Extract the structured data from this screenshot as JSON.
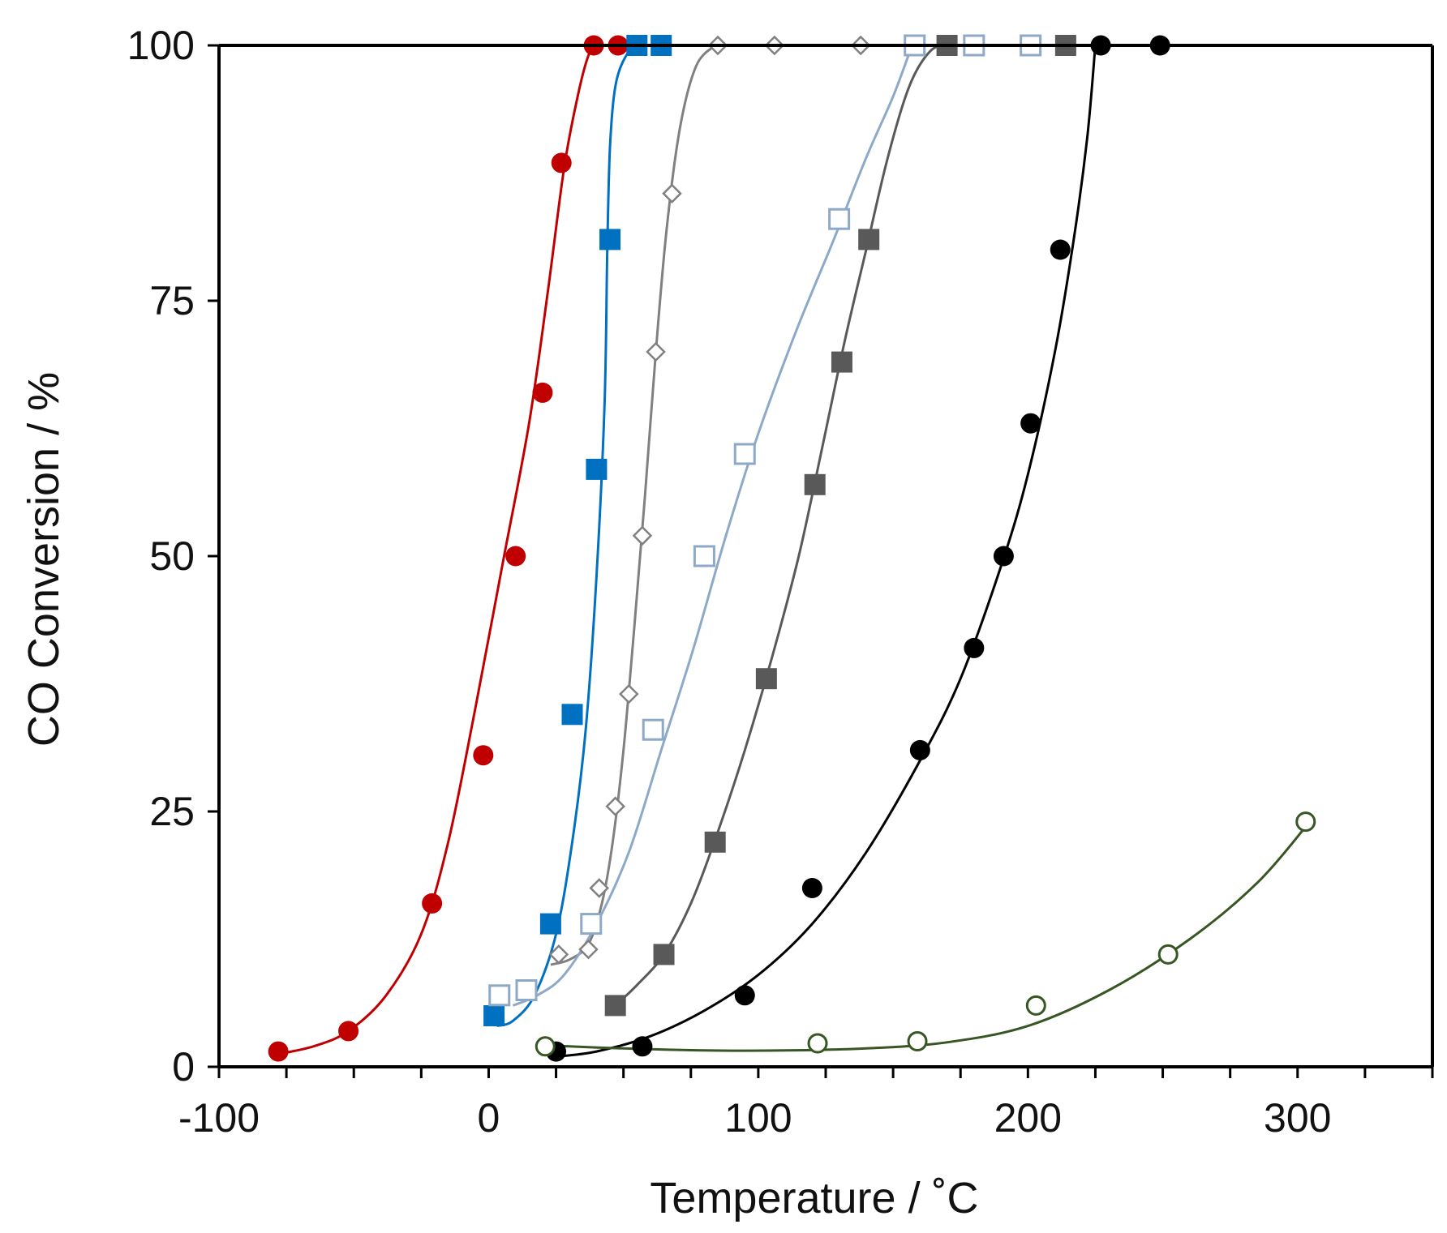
{
  "chart_data": {
    "type": "scatter",
    "xlabel": "Temperature / ˚C",
    "ylabel": "CO Conversion / %",
    "xlim": [
      -100,
      350
    ],
    "ylim": [
      0,
      100
    ],
    "xticks": [
      "-100",
      "0",
      "100",
      "200",
      "300"
    ],
    "yticks": [
      "0",
      "25",
      "50",
      "75",
      "100"
    ],
    "series": [
      {
        "color": "#c00000",
        "marker": "circle-filled",
        "points": [
          [
            -78,
            1.5
          ],
          [
            -52,
            3.5
          ],
          [
            -21,
            16
          ],
          [
            -2,
            30.5
          ],
          [
            10,
            50
          ],
          [
            20,
            66
          ],
          [
            27,
            88.5
          ],
          [
            39,
            100
          ],
          [
            48,
            100
          ]
        ]
      },
      {
        "color": "#0070c0",
        "marker": "square-filled",
        "points": [
          [
            2,
            5
          ],
          [
            23,
            14
          ],
          [
            31,
            34.5
          ],
          [
            40,
            58.5
          ],
          [
            45,
            81
          ],
          [
            55,
            100
          ],
          [
            64,
            100
          ]
        ]
      },
      {
        "color": "#808080",
        "marker": "diamond-open",
        "points": [
          [
            26,
            11
          ],
          [
            37,
            11.5
          ],
          [
            41,
            17.5
          ],
          [
            47,
            25.5
          ],
          [
            52,
            36.5
          ],
          [
            57,
            52
          ],
          [
            62,
            70
          ],
          [
            68,
            85.5
          ],
          [
            85,
            100
          ],
          [
            106,
            100
          ],
          [
            138,
            100
          ]
        ]
      },
      {
        "color": "#8ea9c8",
        "marker": "square-open",
        "points": [
          [
            4,
            7
          ],
          [
            14,
            7.5
          ],
          [
            38,
            14
          ],
          [
            61,
            33
          ],
          [
            80,
            50
          ],
          [
            95,
            60
          ],
          [
            130,
            83
          ],
          [
            158,
            100
          ],
          [
            180,
            100
          ],
          [
            201,
            100
          ]
        ]
      },
      {
        "color": "#595959",
        "marker": "square-filled",
        "points": [
          [
            47,
            6
          ],
          [
            65,
            11
          ],
          [
            84,
            22
          ],
          [
            103,
            38
          ],
          [
            121,
            57
          ],
          [
            131,
            69
          ],
          [
            141,
            81
          ],
          [
            170,
            100
          ],
          [
            214,
            100
          ]
        ]
      },
      {
        "color": "#000000",
        "marker": "circle-filled",
        "points": [
          [
            25,
            1.5
          ],
          [
            57,
            2
          ],
          [
            95,
            7
          ],
          [
            120,
            17.5
          ],
          [
            160,
            31
          ],
          [
            180,
            41
          ],
          [
            191,
            50
          ],
          [
            201,
            63
          ],
          [
            212,
            80
          ],
          [
            227,
            100
          ],
          [
            249,
            100
          ]
        ]
      },
      {
        "color": "#375623",
        "marker": "circle-open",
        "points": [
          [
            21,
            2
          ],
          [
            122,
            2.3
          ],
          [
            159,
            2.5
          ],
          [
            203,
            6
          ],
          [
            252,
            11
          ],
          [
            303,
            24
          ]
        ]
      }
    ],
    "curves": [
      {
        "color": "#c00000",
        "points": [
          [
            -79,
            1.2
          ],
          [
            -65,
            2
          ],
          [
            -52,
            3.5
          ],
          [
            -38,
            7
          ],
          [
            -25,
            13
          ],
          [
            -15,
            22
          ],
          [
            -5,
            35
          ],
          [
            5,
            49
          ],
          [
            15,
            63
          ],
          [
            22,
            76
          ],
          [
            28,
            88
          ],
          [
            33,
            95
          ],
          [
            37,
            99
          ],
          [
            40,
            100
          ]
        ]
      },
      {
        "color": "#0070c0",
        "points": [
          [
            3,
            4
          ],
          [
            9,
            4.5
          ],
          [
            17,
            7
          ],
          [
            25,
            13
          ],
          [
            31,
            22
          ],
          [
            36,
            33
          ],
          [
            40,
            48
          ],
          [
            43,
            65
          ],
          [
            44,
            80
          ],
          [
            45,
            90
          ],
          [
            47,
            96
          ],
          [
            51,
            99
          ],
          [
            56,
            100
          ]
        ]
      },
      {
        "color": "#808080",
        "points": [
          [
            23,
            10
          ],
          [
            30,
            10.5
          ],
          [
            37,
            12
          ],
          [
            42,
            16
          ],
          [
            46,
            22
          ],
          [
            50,
            31
          ],
          [
            54,
            43
          ],
          [
            58,
            56
          ],
          [
            62,
            70
          ],
          [
            66,
            82
          ],
          [
            71,
            92
          ],
          [
            77,
            98
          ],
          [
            84,
            100
          ]
        ]
      },
      {
        "color": "#8ea9c8",
        "points": [
          [
            9,
            6
          ],
          [
            18,
            7
          ],
          [
            28,
            9
          ],
          [
            40,
            14
          ],
          [
            52,
            21
          ],
          [
            64,
            31
          ],
          [
            76,
            41
          ],
          [
            88,
            52
          ],
          [
            100,
            62
          ],
          [
            114,
            72
          ],
          [
            128,
            81
          ],
          [
            140,
            89
          ],
          [
            150,
            95
          ],
          [
            157,
            100
          ]
        ]
      },
      {
        "color": "#595959",
        "points": [
          [
            47,
            6
          ],
          [
            55,
            8
          ],
          [
            65,
            11
          ],
          [
            75,
            16
          ],
          [
            85,
            23
          ],
          [
            95,
            31
          ],
          [
            105,
            40
          ],
          [
            115,
            50
          ],
          [
            124,
            61
          ],
          [
            132,
            71
          ],
          [
            140,
            80
          ],
          [
            148,
            89
          ],
          [
            156,
            96
          ],
          [
            164,
            99.5
          ],
          [
            171,
            100
          ]
        ]
      },
      {
        "color": "#000000",
        "points": [
          [
            25,
            1
          ],
          [
            40,
            1.5
          ],
          [
            60,
            3
          ],
          [
            80,
            5.5
          ],
          [
            100,
            9
          ],
          [
            120,
            14
          ],
          [
            140,
            21
          ],
          [
            160,
            30
          ],
          [
            175,
            38
          ],
          [
            190,
            49
          ],
          [
            200,
            58
          ],
          [
            210,
            70
          ],
          [
            217,
            81
          ],
          [
            222,
            91
          ],
          [
            225,
            100
          ]
        ]
      },
      {
        "color": "#375623",
        "points": [
          [
            21,
            2.1
          ],
          [
            50,
            1.8
          ],
          [
            80,
            1.6
          ],
          [
            110,
            1.6
          ],
          [
            140,
            1.8
          ],
          [
            170,
            2.4
          ],
          [
            200,
            4
          ],
          [
            230,
            7.5
          ],
          [
            260,
            12.5
          ],
          [
            285,
            18
          ],
          [
            303,
            23.5
          ]
        ]
      }
    ]
  }
}
